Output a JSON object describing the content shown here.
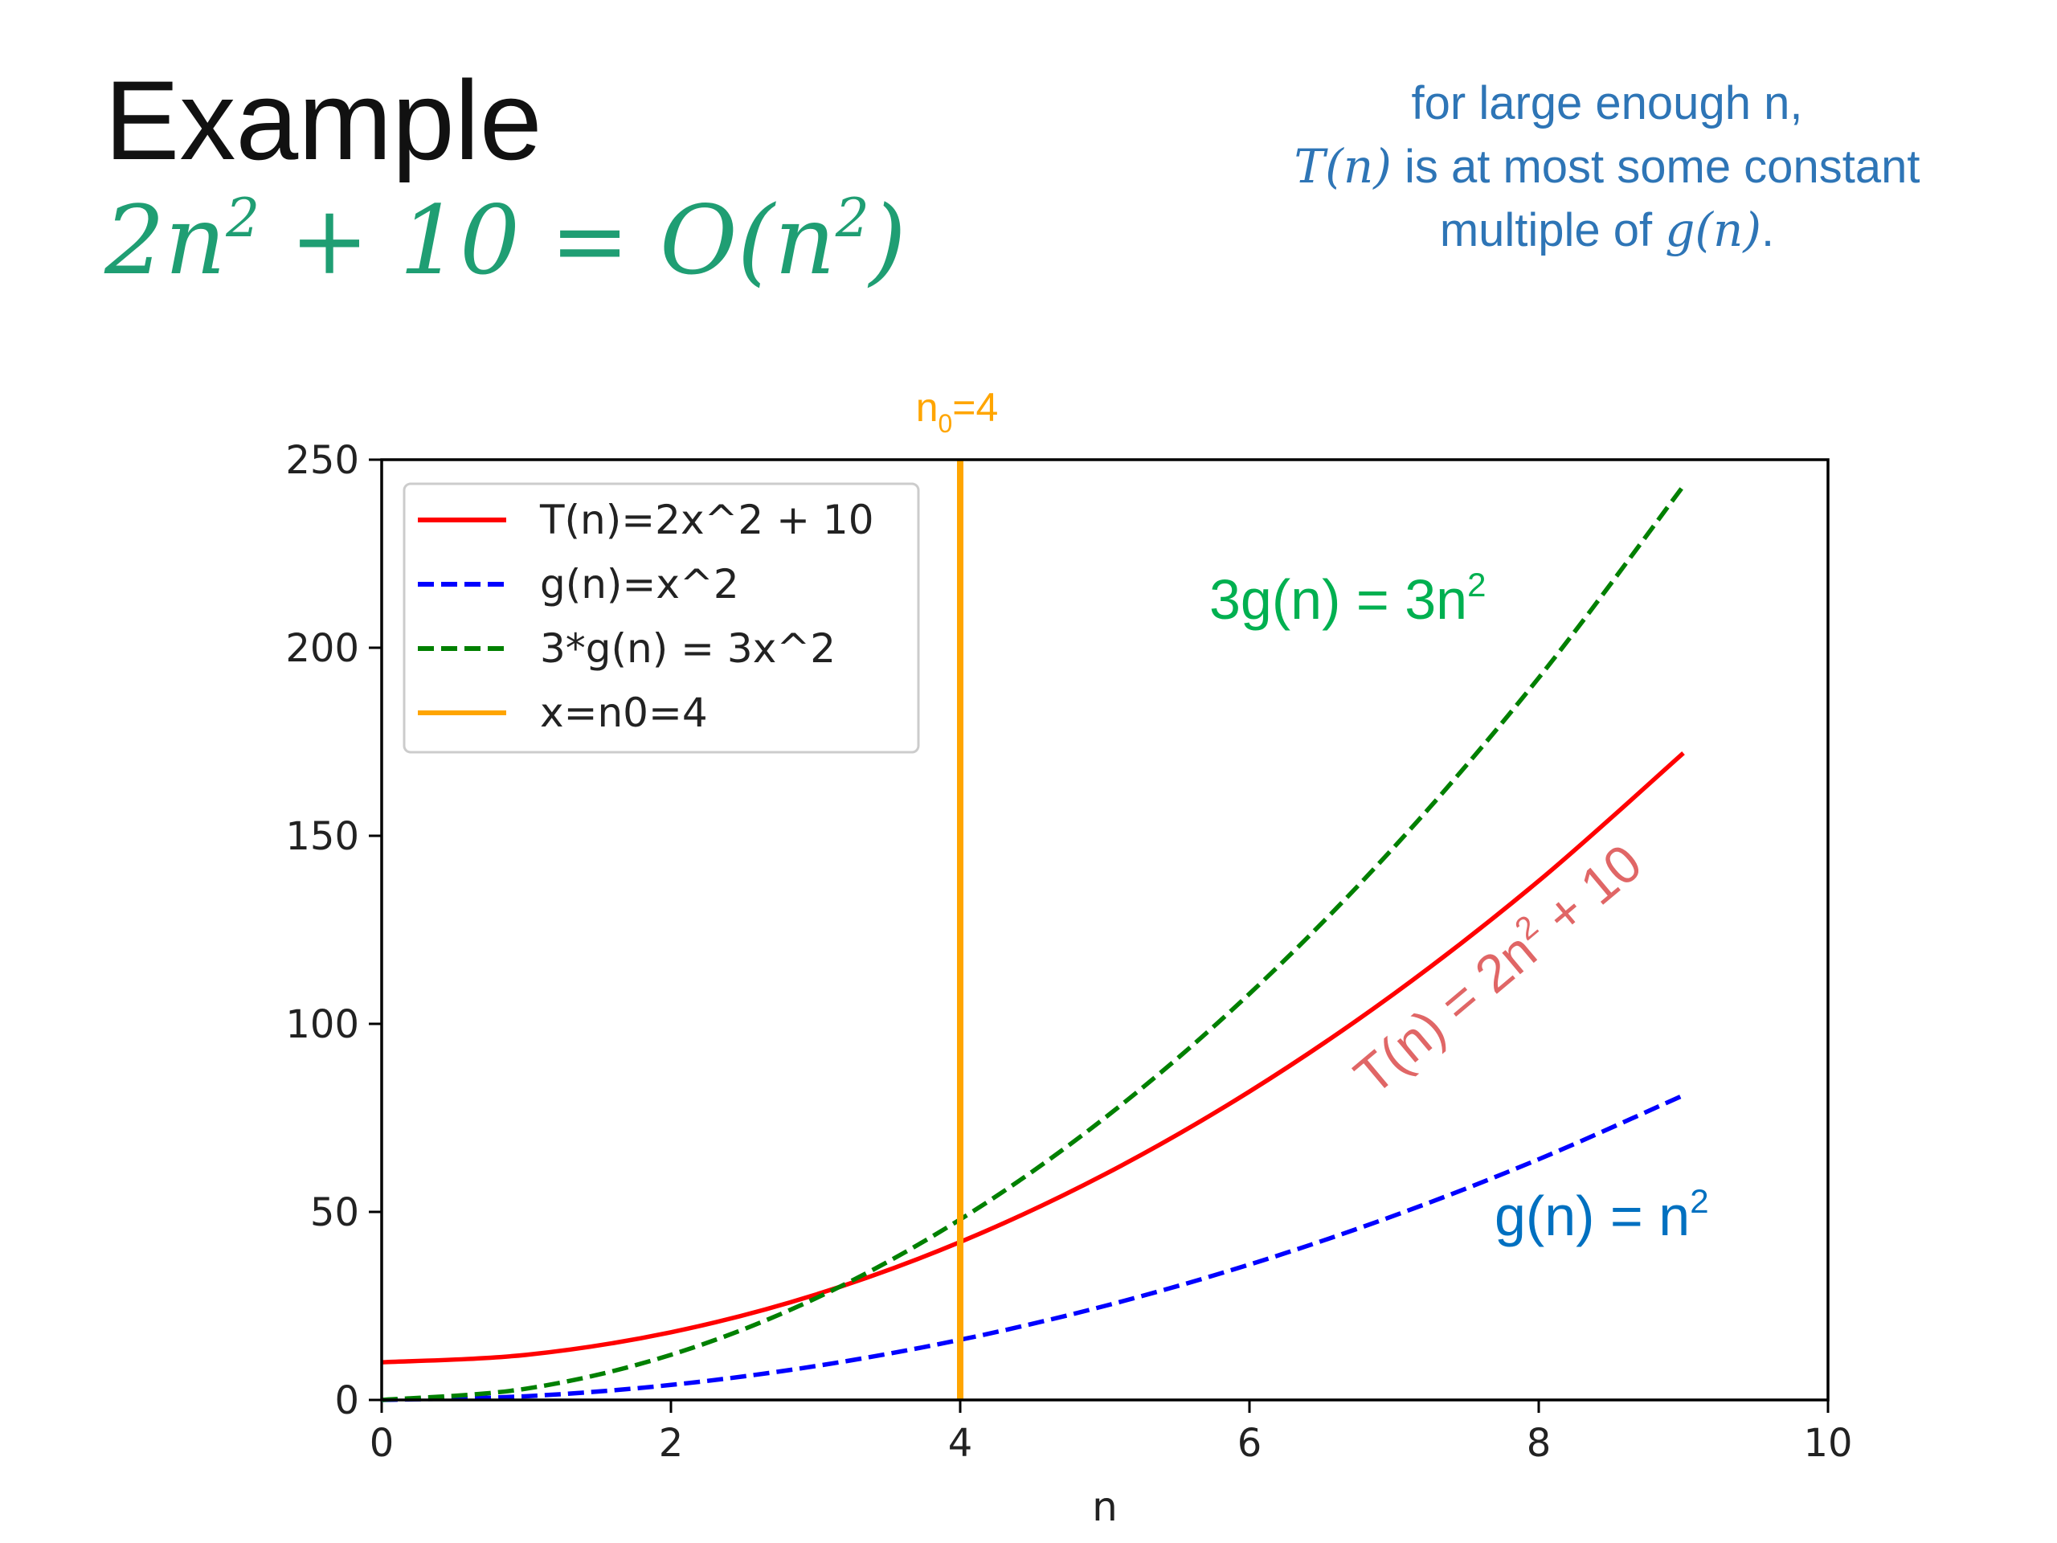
{
  "slide": {
    "title": "Example",
    "formula": {
      "prefix": "2n",
      "exp1": "2",
      "middle": " + 10 = O(n",
      "exp2": "2",
      "suffix": ")"
    },
    "note": {
      "line1": "for large enough n,",
      "line2_math": "T(n)",
      "line2_text": " is at most some constant",
      "line3_text": "multiple of ",
      "line3_math": "g(n)",
      "line3_end": "."
    }
  },
  "chart_data": {
    "type": "line",
    "xlabel": "n",
    "ylabel": "",
    "xlim": [
      0,
      10
    ],
    "ylim": [
      0,
      250
    ],
    "xticks": [
      0,
      2,
      4,
      6,
      8,
      10
    ],
    "yticks": [
      0,
      50,
      100,
      150,
      200,
      250
    ],
    "grid": false,
    "legend": {
      "placement": "top-left"
    },
    "x": [
      0,
      1,
      2,
      3,
      4,
      5,
      6,
      7,
      8,
      9
    ],
    "series": [
      {
        "name": "T(n)=2x^2 + 10",
        "color": "#ff0000",
        "dash": "solid",
        "values": [
          10,
          12,
          18,
          28,
          42,
          60,
          82,
          108,
          138,
          172
        ]
      },
      {
        "name": "g(n)=x^2",
        "color": "#0000ff",
        "dash": "dashed",
        "values": [
          0,
          1,
          4,
          9,
          16,
          25,
          36,
          49,
          64,
          81
        ]
      },
      {
        "name": "3*g(n) = 3x^2",
        "color": "#008000",
        "dash": "dashed",
        "values": [
          0,
          3,
          12,
          27,
          48,
          75,
          108,
          147,
          192,
          243
        ]
      }
    ],
    "vline": {
      "name": "x=n0=4",
      "x": 4,
      "color": "#ffa500",
      "label_main": "n",
      "label_sub": "0",
      "label_end": "=4"
    },
    "annotations": [
      {
        "id": "green",
        "main": "3g(n) = 3n",
        "sup": "2",
        "color": "#00b050"
      },
      {
        "id": "red",
        "main": "T(n) = 2n",
        "sup": "2",
        "end": " + 10",
        "color": "#e06666"
      },
      {
        "id": "blue",
        "main": "g(n) = n",
        "sup": "2",
        "color": "#0070c0"
      }
    ]
  }
}
